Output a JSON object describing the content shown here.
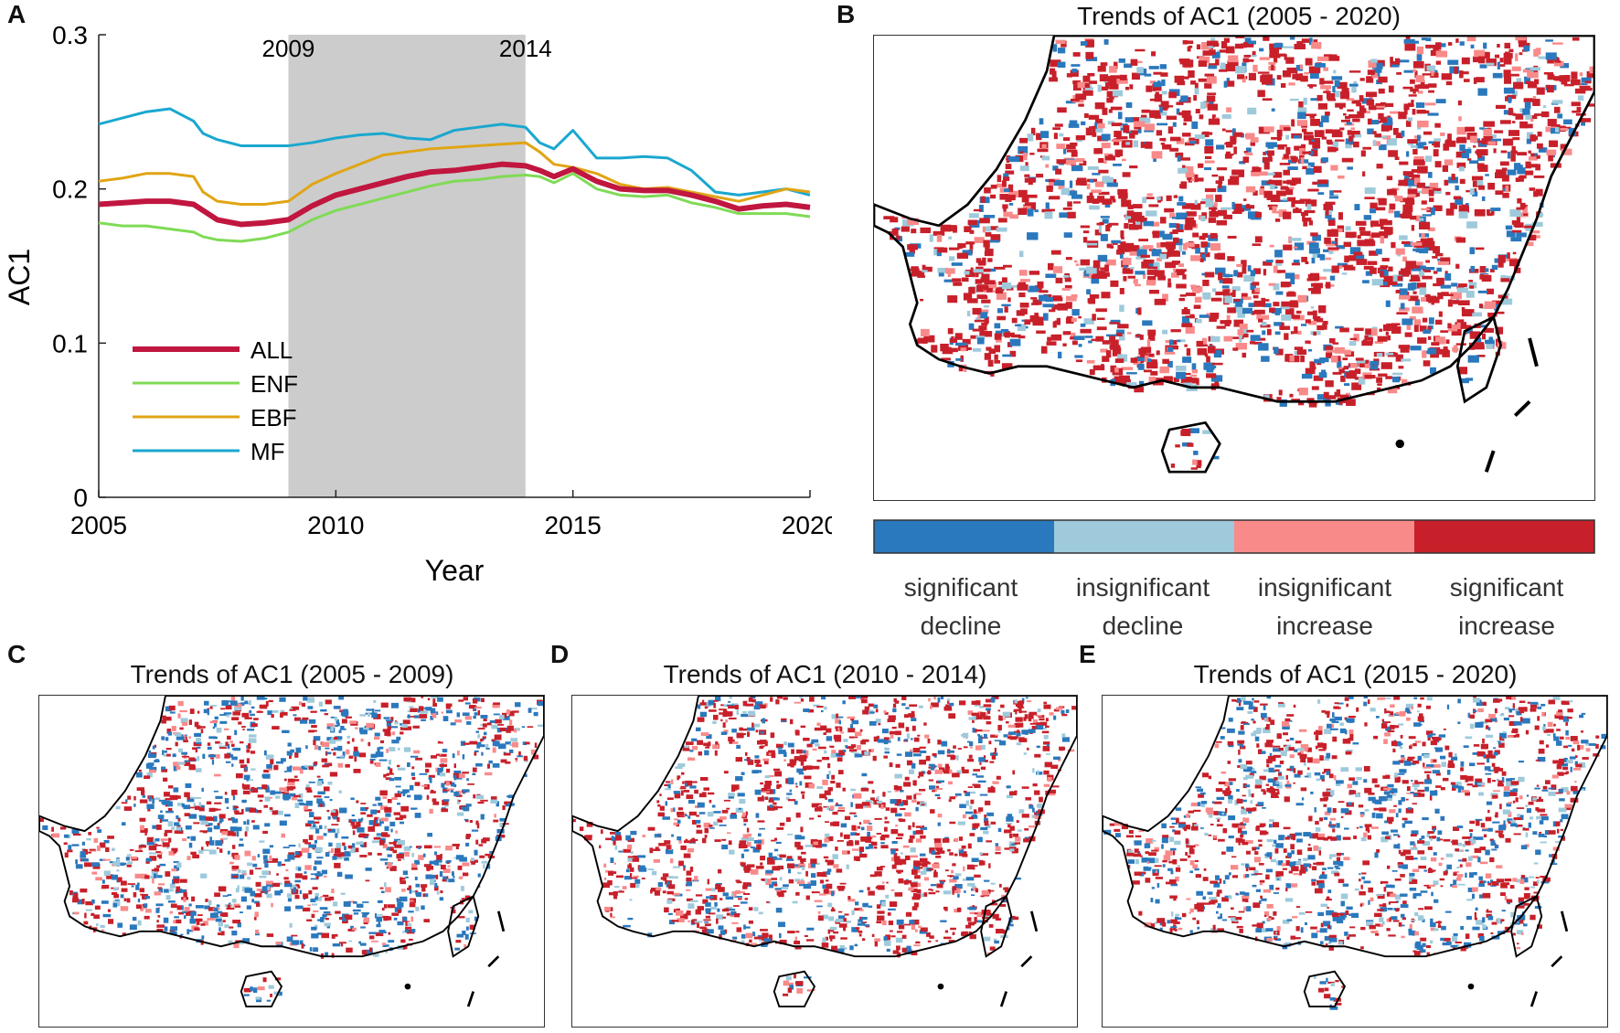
{
  "chart_data": [
    {
      "type": "line",
      "panel": "A",
      "xlabel": "Year",
      "ylabel": "AC1",
      "xlim": [
        2005,
        2020
      ],
      "ylim": [
        0,
        0.3
      ],
      "xticks": [
        "2005",
        "2010",
        "2015",
        "2020"
      ],
      "yticks": [
        "0",
        "0.1",
        "0.2",
        "0.3"
      ],
      "shaded_region": {
        "from": 2009,
        "to": 2014,
        "labels": [
          "2009",
          "2014"
        ],
        "color": "#cccccc"
      },
      "legend_placement": "lower-left",
      "x": [
        2005.0,
        2005.5,
        2006.0,
        2006.5,
        2007.0,
        2007.2,
        2007.5,
        2008.0,
        2008.5,
        2009.0,
        2009.5,
        2010.0,
        2010.5,
        2011.0,
        2011.5,
        2012.0,
        2012.5,
        2013.0,
        2013.5,
        2014.0,
        2014.3,
        2014.6,
        2015.0,
        2015.5,
        2016.0,
        2016.5,
        2017.0,
        2017.5,
        2018.0,
        2018.5,
        2019.0,
        2019.5,
        2020.0
      ],
      "series": [
        {
          "name": "ALL",
          "color": "#c0163f",
          "width": 6,
          "values": [
            0.19,
            0.191,
            0.192,
            0.192,
            0.19,
            0.186,
            0.18,
            0.177,
            0.178,
            0.18,
            0.189,
            0.196,
            0.2,
            0.204,
            0.208,
            0.211,
            0.212,
            0.214,
            0.216,
            0.215,
            0.212,
            0.208,
            0.213,
            0.205,
            0.2,
            0.199,
            0.199,
            0.196,
            0.192,
            0.187,
            0.189,
            0.19,
            0.188
          ]
        },
        {
          "name": "ENF",
          "color": "#7fdb55",
          "width": 3,
          "values": [
            0.178,
            0.176,
            0.176,
            0.174,
            0.172,
            0.169,
            0.167,
            0.166,
            0.168,
            0.172,
            0.18,
            0.186,
            0.19,
            0.194,
            0.198,
            0.202,
            0.205,
            0.206,
            0.208,
            0.209,
            0.208,
            0.204,
            0.21,
            0.2,
            0.196,
            0.195,
            0.196,
            0.191,
            0.188,
            0.184,
            0.184,
            0.184,
            0.182
          ]
        },
        {
          "name": "EBF",
          "color": "#e0a514",
          "width": 3,
          "values": [
            0.205,
            0.207,
            0.21,
            0.21,
            0.208,
            0.198,
            0.192,
            0.19,
            0.19,
            0.192,
            0.203,
            0.21,
            0.216,
            0.222,
            0.224,
            0.226,
            0.227,
            0.228,
            0.229,
            0.23,
            0.224,
            0.216,
            0.214,
            0.21,
            0.203,
            0.2,
            0.201,
            0.198,
            0.195,
            0.192,
            0.196,
            0.2,
            0.198
          ]
        },
        {
          "name": "MF",
          "color": "#1aa7cf",
          "width": 3,
          "values": [
            0.242,
            0.246,
            0.25,
            0.252,
            0.244,
            0.236,
            0.232,
            0.228,
            0.228,
            0.228,
            0.23,
            0.233,
            0.235,
            0.236,
            0.233,
            0.232,
            0.238,
            0.24,
            0.242,
            0.24,
            0.23,
            0.226,
            0.238,
            0.22,
            0.22,
            0.221,
            0.22,
            0.212,
            0.198,
            0.196,
            0.198,
            0.2,
            0.196
          ]
        }
      ]
    }
  ],
  "labels": {
    "panel_a": "A",
    "panel_b": "B",
    "panel_c": "C",
    "panel_d": "D",
    "panel_e": "E"
  },
  "maps": [
    {
      "title": "Trends of AC1 (2005 - 2020)",
      "composition": {
        "significant_decline": 0.18,
        "insignificant_decline": 0.1,
        "insignificant_increase": 0.12,
        "significant_increase": 0.6
      }
    },
    {
      "title": "Trends of AC1 (2005 - 2009)",
      "composition": {
        "significant_decline": 0.38,
        "insignificant_decline": 0.12,
        "insignificant_increase": 0.1,
        "significant_increase": 0.4
      }
    },
    {
      "title": "Trends of AC1 (2010 - 2014)",
      "composition": {
        "significant_decline": 0.22,
        "insignificant_decline": 0.1,
        "insignificant_increase": 0.12,
        "significant_increase": 0.56
      }
    },
    {
      "title": "Trends of AC1 (2015 - 2020)",
      "composition": {
        "significant_decline": 0.32,
        "insignificant_decline": 0.14,
        "insignificant_increase": 0.1,
        "significant_increase": 0.44
      }
    }
  ],
  "colorbar": [
    {
      "line1": "significant",
      "line2": "decline",
      "color": "#2a78bd"
    },
    {
      "line1": "insignificant",
      "line2": "decline",
      "color": "#9ecadb"
    },
    {
      "line1": "insignificant",
      "line2": "increase",
      "color": "#f98a8a"
    },
    {
      "line1": "significant",
      "line2": "increase",
      "color": "#c8202a"
    }
  ]
}
